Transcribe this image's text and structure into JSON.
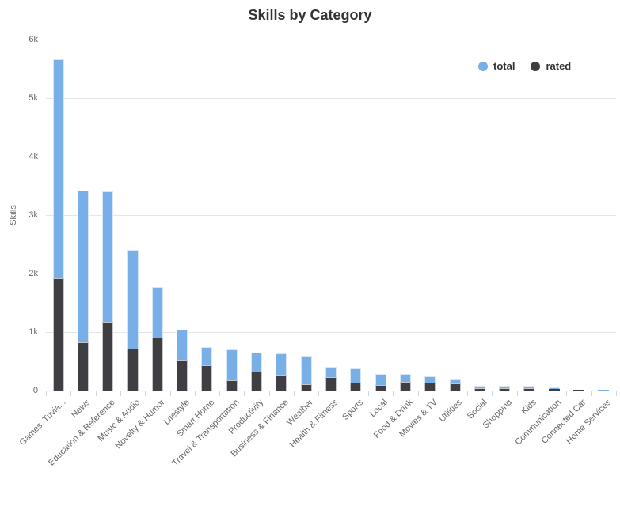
{
  "title": "Skills by Category",
  "colors": {
    "total": "#78afe6",
    "rated": "#3e3e43",
    "grid": "#e6e6e6",
    "axis": "#ccd6eb",
    "label_text": "#666666",
    "title_text": "#333333"
  },
  "chart_data": {
    "type": "bar",
    "variant": "stacked-overlay-column",
    "title": "Skills by Category",
    "xlabel": "",
    "ylabel": "Skills",
    "ylim": [
      0,
      6000
    ],
    "ytick_labels": [
      "0",
      "1k",
      "2k",
      "3k",
      "4k",
      "5k",
      "6k"
    ],
    "grid": true,
    "legend_position": "top-right",
    "categories": [
      "Games, Trivia...",
      "News",
      "Education & Reference",
      "Music & Audio",
      "Novelty & Humor",
      "Lifestyle",
      "Smart Home",
      "Travel & Transportation",
      "Productivity",
      "Business & Finance",
      "Weather",
      "Health & Fitness",
      "Sports",
      "Local",
      "Food & Drink",
      "Movies & TV",
      "Utilities",
      "Social",
      "Shopping",
      "Kids",
      "Communication",
      "Connected Car",
      "Home Services"
    ],
    "series": [
      {
        "name": "total",
        "color": "#78afe6",
        "values": [
          5660,
          3420,
          3400,
          2400,
          1770,
          1040,
          750,
          700,
          645,
          640,
          590,
          405,
          380,
          290,
          285,
          240,
          185,
          85,
          75,
          75,
          50,
          18,
          8
        ]
      },
      {
        "name": "rated",
        "color": "#3e3e43",
        "values": [
          1920,
          820,
          1170,
          715,
          910,
          525,
          430,
          170,
          330,
          270,
          110,
          225,
          135,
          100,
          150,
          140,
          120,
          40,
          43,
          43,
          25,
          12,
          3
        ]
      }
    ]
  }
}
